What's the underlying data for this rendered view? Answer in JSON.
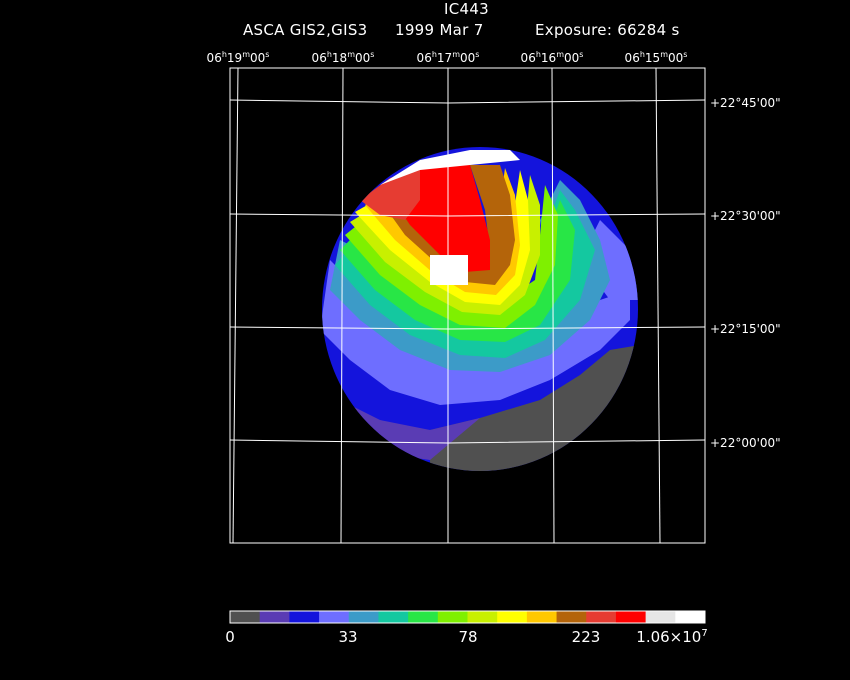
{
  "chart_data": {
    "type": "heatmap",
    "title": "IC443",
    "subtitle_instrument": "ASCA GIS2,GIS3",
    "subtitle_date": "1999 Mar  7",
    "subtitle_exposure": "Exposure: 66284 s",
    "grid": true,
    "x_axis": {
      "ticks": [
        {
          "h": "06",
          "m": "19",
          "s": "00"
        },
        {
          "h": "06",
          "m": "18",
          "s": "00"
        },
        {
          "h": "06",
          "m": "17",
          "s": "00"
        },
        {
          "h": "06",
          "m": "16",
          "s": "00"
        },
        {
          "h": "06",
          "m": "15",
          "s": "00"
        }
      ]
    },
    "y_axis": {
      "ticks": [
        "+22°45'00\"",
        "+22°30'00\"",
        "+22°15'00\"",
        "+22°00'00\""
      ]
    },
    "colorbar": {
      "colors": [
        "#505050",
        "#5a3cb4",
        "#1414dc",
        "#6e6eff",
        "#3c9bc8",
        "#14c8a0",
        "#28e646",
        "#7ff000",
        "#c8f000",
        "#ffff00",
        "#ffc800",
        "#b4640a",
        "#e63c32",
        "#ff0000",
        "#e6e6e6",
        "#ffffff"
      ],
      "labels": [
        {
          "text": "0"
        },
        {
          "text": "33"
        },
        {
          "text": "78"
        },
        {
          "text": "223"
        },
        {
          "text": "1.06×10",
          "sup": "7"
        }
      ]
    },
    "image_description_levels": "color levels increase from grey (low) through blue, green, yellow, orange to red and white (peak)"
  }
}
